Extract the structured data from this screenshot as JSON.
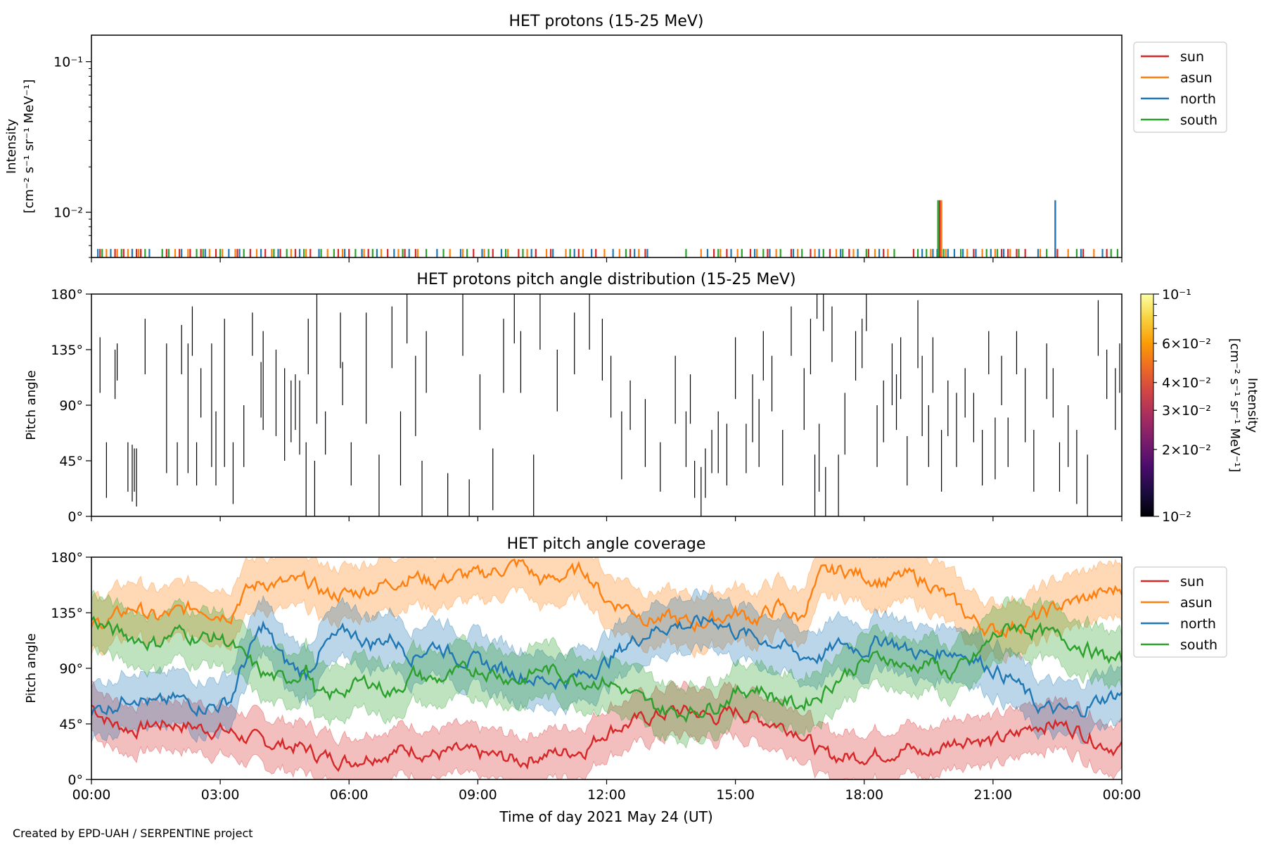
{
  "footer": "Created by EPD-UAH / SERPENTINE project",
  "xlabel": "Time of day 2021 May 24 (UT)",
  "xticks": [
    "00:00",
    "03:00",
    "06:00",
    "09:00",
    "12:00",
    "15:00",
    "18:00",
    "21:00",
    "00:00"
  ],
  "series_colors": {
    "sun": "#d62728",
    "asun": "#ff7f0e",
    "north": "#1f77b4",
    "south": "#2ca02c"
  },
  "legend": [
    "sun",
    "asun",
    "north",
    "south"
  ],
  "chart_data": [
    {
      "type": "line",
      "title": "HET protons (15-25 MeV)",
      "ylabel_line1": "Intensity",
      "ylabel_line2": "[cm⁻² s⁻¹ sr⁻¹ MeV⁻¹]",
      "yscale": "log",
      "ylim": [
        0.005,
        0.15
      ],
      "yticks": [
        {
          "label": "10⁻¹",
          "value": 0.1
        },
        {
          "label": "10⁻²",
          "value": 0.01
        }
      ],
      "xlim_hours": [
        0,
        24
      ],
      "legend_position": "outside-right-top",
      "baseline_value": 0.0057,
      "spike_value": 0.012,
      "series": [
        {
          "name": "sun",
          "baseline_hours": [
            0.2,
            0.55,
            0.75,
            0.95,
            1.05,
            1.15,
            1.75,
            2.05,
            2.3,
            2.55,
            2.9,
            3.4,
            3.7,
            4.05,
            4.4,
            4.75,
            5.1,
            5.75,
            6.0,
            6.45,
            6.9,
            7.3,
            7.55,
            8.9,
            9.35,
            9.95,
            10.35,
            10.7,
            11.35,
            11.75,
            12.55,
            12.9,
            14.5,
            14.8,
            15.35,
            15.75,
            16.3,
            16.75,
            17.2,
            17.65,
            18.1,
            18.45,
            19.15,
            19.8,
            20.55,
            21.2,
            21.35,
            21.55,
            21.75,
            22.5,
            23.1,
            23.65
          ]
        },
        {
          "name": "asun",
          "baseline_hours": [
            0.35,
            0.6,
            0.85,
            1.1,
            1.95,
            2.25,
            2.75,
            3.05,
            3.35,
            3.85,
            4.2,
            4.65,
            5.0,
            5.5,
            5.85,
            6.35,
            6.75,
            7.15,
            7.6,
            8.35,
            8.65,
            9.15,
            9.7,
            10.15,
            10.6,
            11.05,
            11.45,
            11.95,
            12.3,
            12.75,
            14.2,
            14.65,
            15.05,
            15.5,
            15.95,
            16.45,
            16.85,
            17.35,
            17.75,
            18.25,
            18.55,
            19.55,
            19.9,
            20.4,
            20.75,
            21.05,
            21.4,
            22.1,
            22.75,
            23.35
          ]
        },
        {
          "name": "north",
          "baseline_hours": [
            0.15,
            0.45,
            0.95,
            1.35,
            2.1,
            2.65,
            3.2,
            3.45,
            3.95,
            4.35,
            4.85,
            5.3,
            5.9,
            6.3,
            6.65,
            7.05,
            7.4,
            8.05,
            8.6,
            9.1,
            9.55,
            10.25,
            10.75,
            11.25,
            11.65,
            12.15,
            12.65,
            12.95,
            14.35,
            14.9,
            15.45,
            15.8,
            16.35,
            16.95,
            17.45,
            17.85,
            18.35,
            19.35,
            19.6,
            19.7,
            19.95,
            20.1,
            20.3,
            20.6,
            20.95,
            21.25,
            22.05,
            22.45,
            23.05,
            23.55
          ]
        },
        {
          "name": "south",
          "baseline_hours": [
            0.25,
            0.7,
            1.25,
            1.65,
            1.8,
            2.45,
            2.6,
            3.0,
            3.55,
            4.25,
            4.55,
            4.95,
            5.35,
            5.65,
            6.15,
            6.55,
            7.25,
            7.8,
            8.2,
            8.75,
            9.25,
            9.65,
            10.05,
            11.15,
            12.45,
            13.85,
            14.6,
            15.15,
            15.65,
            16.05,
            16.55,
            17.05,
            17.5,
            18.05,
            18.7,
            19.25,
            19.45,
            19.85,
            20.25,
            20.85,
            21.1,
            21.6,
            22.25,
            22.95,
            23.75,
            23.9
          ]
        }
      ],
      "spikes": [
        {
          "series": "south",
          "hour": 19.72
        },
        {
          "series": "sun",
          "hour": 19.76
        },
        {
          "series": "asun",
          "hour": 19.8
        },
        {
          "series": "north",
          "hour": 22.45
        }
      ]
    },
    {
      "type": "heatmap",
      "title": "HET protons pitch angle distribution (15-25 MeV)",
      "ylabel": "Pitch angle",
      "ylim": [
        0,
        180
      ],
      "yticks": [
        "0°",
        "45°",
        "90°",
        "135°",
        "180°"
      ],
      "xlim_hours": [
        0,
        24
      ],
      "colorbar": {
        "label_line1": "Intensity",
        "label_line2": "[cm⁻² s⁻¹ sr⁻¹ MeV⁻¹]",
        "scale": "log",
        "range": [
          0.01,
          0.1
        ],
        "ticks": [
          {
            "label": "10⁻¹",
            "value": 0.1
          },
          {
            "label": "6×10⁻²",
            "value": 0.06
          },
          {
            "label": "4×10⁻²",
            "value": 0.04
          },
          {
            "label": "3×10⁻²",
            "value": 0.03
          },
          {
            "label": "2×10⁻²",
            "value": 0.02
          },
          {
            "label": "10⁻²",
            "value": 0.01
          }
        ],
        "colormap_stops": [
          "#000004",
          "#1b0c41",
          "#4a0c6b",
          "#781c6d",
          "#a52c60",
          "#cf4446",
          "#ed6925",
          "#fb9b06",
          "#f7d13d",
          "#fcffa4"
        ]
      },
      "segments": [
        [
          0.2,
          100,
          145
        ],
        [
          0.35,
          15,
          60
        ],
        [
          0.55,
          95,
          135
        ],
        [
          0.6,
          110,
          140
        ],
        [
          0.85,
          20,
          60
        ],
        [
          0.95,
          12,
          58
        ],
        [
          1.0,
          20,
          55
        ],
        [
          1.05,
          8,
          55
        ],
        [
          1.25,
          115,
          160
        ],
        [
          1.75,
          35,
          140
        ],
        [
          2.0,
          25,
          60
        ],
        [
          2.1,
          115,
          155
        ],
        [
          2.25,
          35,
          140
        ],
        [
          2.35,
          130,
          170
        ],
        [
          2.45,
          25,
          60
        ],
        [
          2.55,
          80,
          120
        ],
        [
          2.8,
          40,
          140
        ],
        [
          2.9,
          25,
          85
        ],
        [
          3.1,
          40,
          160
        ],
        [
          3.3,
          10,
          60
        ],
        [
          3.55,
          40,
          90
        ],
        [
          3.75,
          130,
          165
        ],
        [
          3.95,
          80,
          125
        ],
        [
          4.0,
          70,
          150
        ],
        [
          4.3,
          65,
          135
        ],
        [
          4.5,
          45,
          120
        ],
        [
          4.65,
          60,
          110
        ],
        [
          4.75,
          70,
          115
        ],
        [
          4.85,
          50,
          110
        ],
        [
          5.0,
          0,
          60
        ],
        [
          5.05,
          115,
          160
        ],
        [
          5.2,
          0,
          45
        ],
        [
          5.25,
          75,
          180
        ],
        [
          5.45,
          50,
          85
        ],
        [
          5.8,
          120,
          165
        ],
        [
          5.85,
          90,
          125
        ],
        [
          6.05,
          25,
          60
        ],
        [
          6.4,
          75,
          165
        ],
        [
          6.7,
          0,
          50
        ],
        [
          7.0,
          120,
          170
        ],
        [
          7.2,
          25,
          85
        ],
        [
          7.35,
          140,
          180
        ],
        [
          7.55,
          65,
          130
        ],
        [
          7.7,
          0,
          45
        ],
        [
          7.8,
          100,
          150
        ],
        [
          8.3,
          0,
          35
        ],
        [
          8.65,
          130,
          180
        ],
        [
          8.8,
          0,
          30
        ],
        [
          9.05,
          70,
          115
        ],
        [
          9.35,
          5,
          55
        ],
        [
          9.6,
          100,
          160
        ],
        [
          9.85,
          140,
          180
        ],
        [
          10.0,
          100,
          150
        ],
        [
          10.3,
          0,
          50
        ],
        [
          10.45,
          135,
          180
        ],
        [
          10.85,
          85,
          135
        ],
        [
          11.25,
          115,
          165
        ],
        [
          11.6,
          135,
          180
        ],
        [
          11.9,
          110,
          160
        ],
        [
          12.1,
          80,
          130
        ],
        [
          12.35,
          30,
          85
        ],
        [
          12.55,
          70,
          110
        ],
        [
          12.9,
          40,
          95
        ],
        [
          13.25,
          20,
          60
        ],
        [
          13.6,
          75,
          130
        ],
        [
          13.85,
          40,
          85
        ],
        [
          13.95,
          75,
          115
        ],
        [
          14.05,
          15,
          45
        ],
        [
          14.2,
          0,
          40
        ],
        [
          14.3,
          15,
          55
        ],
        [
          14.45,
          35,
          70
        ],
        [
          14.6,
          35,
          85
        ],
        [
          14.8,
          25,
          75
        ],
        [
          15.0,
          95,
          145
        ],
        [
          15.25,
          35,
          75
        ],
        [
          15.4,
          60,
          115
        ],
        [
          15.55,
          40,
          95
        ],
        [
          15.65,
          110,
          150
        ],
        [
          15.85,
          85,
          130
        ],
        [
          16.1,
          25,
          70
        ],
        [
          16.3,
          130,
          170
        ],
        [
          16.6,
          70,
          120
        ],
        [
          16.75,
          115,
          160
        ],
        [
          16.85,
          0,
          50
        ],
        [
          16.9,
          160,
          180
        ],
        [
          16.95,
          20,
          75
        ],
        [
          17.05,
          150,
          180
        ],
        [
          17.1,
          0,
          40
        ],
        [
          17.25,
          125,
          170
        ],
        [
          17.4,
          0,
          50
        ],
        [
          17.55,
          50,
          100
        ],
        [
          17.8,
          110,
          150
        ],
        [
          17.95,
          120,
          160
        ],
        [
          18.05,
          150,
          180
        ],
        [
          18.3,
          40,
          90
        ],
        [
          18.45,
          60,
          110
        ],
        [
          18.65,
          90,
          140
        ],
        [
          18.75,
          70,
          115
        ],
        [
          18.85,
          95,
          145
        ],
        [
          19.0,
          25,
          65
        ],
        [
          19.25,
          120,
          175
        ],
        [
          19.35,
          65,
          130
        ],
        [
          19.5,
          40,
          90
        ],
        [
          19.6,
          100,
          145
        ],
        [
          19.8,
          20,
          70
        ],
        [
          19.95,
          65,
          110
        ],
        [
          20.15,
          40,
          100
        ],
        [
          20.35,
          80,
          120
        ],
        [
          20.55,
          60,
          100
        ],
        [
          20.75,
          25,
          70
        ],
        [
          20.9,
          115,
          150
        ],
        [
          21.05,
          30,
          80
        ],
        [
          21.2,
          90,
          130
        ],
        [
          21.35,
          40,
          80
        ],
        [
          21.55,
          115,
          150
        ],
        [
          21.75,
          60,
          120
        ],
        [
          21.95,
          20,
          70
        ],
        [
          22.25,
          95,
          140
        ],
        [
          22.4,
          80,
          120
        ],
        [
          22.55,
          20,
          60
        ],
        [
          22.75,
          40,
          90
        ],
        [
          22.95,
          10,
          70
        ],
        [
          23.2,
          0,
          50
        ],
        [
          23.45,
          130,
          175
        ],
        [
          23.65,
          95,
          135
        ],
        [
          23.85,
          70,
          120
        ],
        [
          23.95,
          100,
          140
        ]
      ]
    },
    {
      "type": "area",
      "title": "HET pitch angle coverage",
      "ylabel": "Pitch angle",
      "ylim": [
        0,
        180
      ],
      "yticks": [
        "0°",
        "45°",
        "90°",
        "135°",
        "180°"
      ],
      "xlim_hours": [
        0,
        24
      ],
      "legend_position": "outside-right-top",
      "x_hours": [
        0,
        0.5,
        1,
        1.5,
        2,
        2.5,
        3,
        3.25,
        3.5,
        4,
        4.5,
        5,
        5.25,
        5.5,
        6,
        6.5,
        7,
        7.5,
        8,
        8.5,
        9,
        9.5,
        10,
        10.5,
        11,
        11.5,
        12,
        12.5,
        13,
        13.5,
        14,
        14.5,
        15,
        15.5,
        16,
        16.5,
        17,
        17.5,
        18,
        18.5,
        19,
        19.5,
        20,
        20.5,
        21,
        21.5,
        22,
        22.5,
        23,
        23.5,
        24
      ],
      "series": [
        {
          "name": "sun",
          "values": [
            60,
            45,
            40,
            45,
            45,
            42,
            40,
            38,
            35,
            30,
            28,
            25,
            20,
            18,
            15,
            20,
            22,
            25,
            20,
            22,
            20,
            18,
            15,
            20,
            22,
            25,
            40,
            45,
            50,
            55,
            55,
            50,
            55,
            50,
            45,
            40,
            20,
            18,
            20,
            22,
            25,
            20,
            30,
            35,
            30,
            35,
            45,
            45,
            40,
            30,
            25
          ],
          "band": 20
        },
        {
          "name": "asun",
          "values": [
            125,
            130,
            140,
            130,
            135,
            140,
            135,
            135,
            150,
            160,
            158,
            160,
            155,
            150,
            150,
            155,
            160,
            165,
            160,
            165,
            165,
            170,
            175,
            160,
            165,
            170,
            145,
            140,
            130,
            130,
            125,
            130,
            135,
            130,
            140,
            130,
            165,
            170,
            165,
            160,
            165,
            160,
            145,
            130,
            120,
            125,
            130,
            140,
            145,
            150,
            155
          ],
          "band": 22
        },
        {
          "name": "north",
          "values": [
            55,
            60,
            70,
            60,
            65,
            60,
            60,
            65,
            90,
            125,
            95,
            85,
            100,
            110,
            120,
            110,
            115,
            100,
            110,
            100,
            95,
            90,
            85,
            80,
            80,
            85,
            95,
            110,
            120,
            125,
            125,
            130,
            120,
            115,
            110,
            100,
            100,
            110,
            105,
            115,
            105,
            100,
            105,
            100,
            90,
            80,
            60,
            55,
            55,
            65,
            70
          ],
          "band": 22
        },
        {
          "name": "south",
          "values": [
            130,
            120,
            115,
            110,
            120,
            115,
            115,
            110,
            100,
            85,
            80,
            90,
            70,
            65,
            75,
            80,
            70,
            85,
            80,
            85,
            90,
            85,
            80,
            90,
            85,
            80,
            80,
            70,
            60,
            55,
            55,
            60,
            70,
            75,
            65,
            60,
            70,
            85,
            95,
            100,
            90,
            95,
            85,
            95,
            115,
            125,
            120,
            115,
            110,
            100,
            95
          ],
          "band": 22
        }
      ]
    }
  ]
}
